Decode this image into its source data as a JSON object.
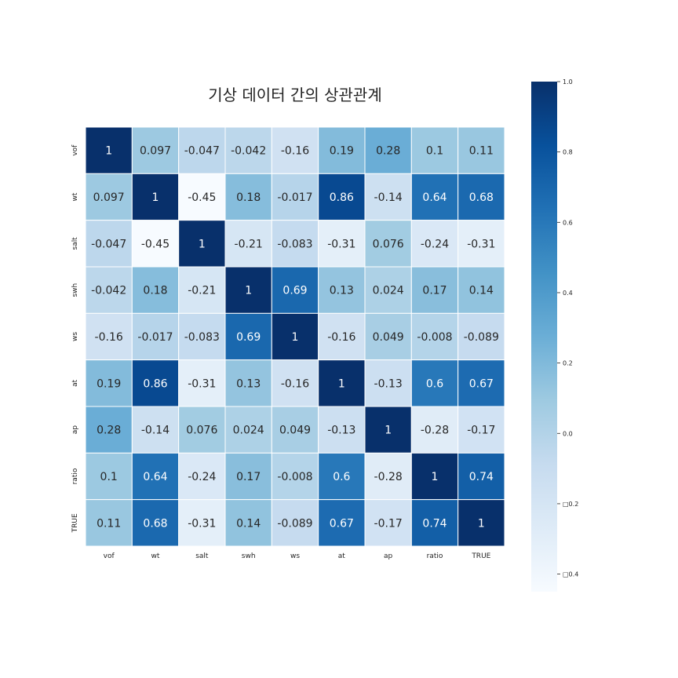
{
  "chart_data": {
    "type": "heatmap",
    "title": "기상 데이터 간의 상관관계",
    "x_labels": [
      "vof",
      "wt",
      "salt",
      "swh",
      "ws",
      "at",
      "ap",
      "ratio",
      "TRUE"
    ],
    "y_labels": [
      "vof",
      "wt",
      "salt",
      "swh",
      "ws",
      "at",
      "ap",
      "ratio",
      "TRUE"
    ],
    "values": [
      [
        1,
        0.097,
        -0.047,
        -0.042,
        -0.16,
        0.19,
        0.28,
        0.1,
        0.11
      ],
      [
        0.097,
        1,
        -0.45,
        0.18,
        -0.017,
        0.86,
        -0.14,
        0.64,
        0.68
      ],
      [
        -0.047,
        -0.45,
        1,
        -0.21,
        -0.083,
        -0.31,
        0.076,
        -0.24,
        -0.31
      ],
      [
        -0.042,
        0.18,
        -0.21,
        1,
        0.69,
        0.13,
        0.024,
        0.17,
        0.14
      ],
      [
        -0.16,
        -0.017,
        -0.083,
        0.69,
        1,
        -0.16,
        0.049,
        -0.008,
        -0.089
      ],
      [
        0.19,
        0.86,
        -0.31,
        0.13,
        -0.16,
        1,
        -0.13,
        0.6,
        0.67
      ],
      [
        0.28,
        -0.14,
        0.076,
        0.024,
        0.049,
        -0.13,
        1,
        -0.28,
        -0.17
      ],
      [
        0.1,
        0.64,
        -0.24,
        0.17,
        -0.008,
        0.6,
        -0.28,
        1,
        0.74
      ],
      [
        0.11,
        0.68,
        -0.31,
        0.14,
        -0.089,
        0.67,
        -0.17,
        0.74,
        1
      ]
    ],
    "cell_labels": [
      [
        "1",
        "0.097",
        "-0.047",
        "-0.042",
        "-0.16",
        "0.19",
        "0.28",
        "0.1",
        "0.11"
      ],
      [
        "0.097",
        "1",
        "-0.45",
        "0.18",
        "-0.017",
        "0.86",
        "-0.14",
        "0.64",
        "0.68"
      ],
      [
        "-0.047",
        "-0.45",
        "1",
        "-0.21",
        "-0.083",
        "-0.31",
        "0.076",
        "-0.24",
        "-0.31"
      ],
      [
        "-0.042",
        "0.18",
        "-0.21",
        "1",
        "0.69",
        "0.13",
        "0.024",
        "0.17",
        "0.14"
      ],
      [
        "-0.16",
        "-0.017",
        "-0.083",
        "0.69",
        "1",
        "-0.16",
        "0.049",
        "-0.008",
        "-0.089"
      ],
      [
        "0.19",
        "0.86",
        "-0.31",
        "0.13",
        "-0.16",
        "1",
        "-0.13",
        "0.6",
        "0.67"
      ],
      [
        "0.28",
        "-0.14",
        "0.076",
        "0.024",
        "0.049",
        "-0.13",
        "1",
        "-0.28",
        "-0.17"
      ],
      [
        "0.1",
        "0.64",
        "-0.24",
        "0.17",
        "-0.008",
        "0.6",
        "-0.28",
        "1",
        "0.74"
      ],
      [
        "0.11",
        "0.68",
        "-0.31",
        "0.14",
        "-0.089",
        "0.67",
        "-0.17",
        "0.74",
        "1"
      ]
    ],
    "colormap": "Blues",
    "colorbar": {
      "range": [
        -0.45,
        1.0
      ],
      "ticks": [
        1.0,
        0.8,
        0.6,
        0.4,
        0.2,
        0.0,
        -0.2,
        -0.4
      ],
      "tick_labels": [
        "1.0",
        "0.8",
        "0.6",
        "0.4",
        "0.2",
        "0.0",
        "□0.2",
        "□0.4"
      ],
      "position": "right"
    },
    "grid_lines": true
  },
  "colors": {
    "cmap_low": "#f7fbff",
    "cmap_high": "#08306b",
    "text_dark": "#262626",
    "text_light": "#ffffff",
    "cell_border": "#ffffff"
  }
}
